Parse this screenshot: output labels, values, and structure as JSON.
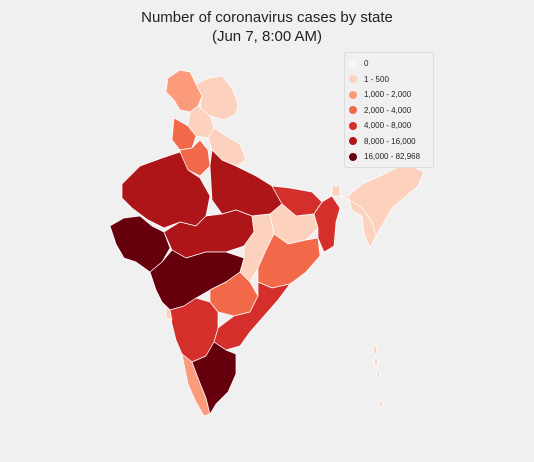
{
  "title": {
    "line1": "Number of coronavirus cases by state",
    "line2": "(Jun 7, 8:00 AM)"
  },
  "legend": {
    "bins": [
      {
        "label": "0",
        "color": "#fff5f0"
      },
      {
        "label": "1 - 500",
        "color": "#fcd2bf"
      },
      {
        "label": "1,000 - 2,000",
        "color": "#fc9a7c"
      },
      {
        "label": "2,000 - 4,000",
        "color": "#f2694a"
      },
      {
        "label": "4,000 - 8,000",
        "color": "#d42f2a"
      },
      {
        "label": "8,000 - 16,000",
        "color": "#ad1519"
      },
      {
        "label": "16,000 - 82,968",
        "color": "#67000d"
      }
    ]
  },
  "regions": [
    {
      "name": "jammu-kashmir",
      "bin": 2
    },
    {
      "name": "ladakh",
      "bin": 1
    },
    {
      "name": "himachal-pradesh",
      "bin": 1
    },
    {
      "name": "punjab",
      "bin": 3
    },
    {
      "name": "uttarakhand",
      "bin": 1
    },
    {
      "name": "haryana",
      "bin": 3
    },
    {
      "name": "rajasthan",
      "bin": 5
    },
    {
      "name": "uttar-pradesh",
      "bin": 5
    },
    {
      "name": "gujarat",
      "bin": 6
    },
    {
      "name": "madhya-pradesh",
      "bin": 5
    },
    {
      "name": "bihar",
      "bin": 4
    },
    {
      "name": "jharkhand",
      "bin": 1
    },
    {
      "name": "west-bengal",
      "bin": 4
    },
    {
      "name": "chhattisgarh",
      "bin": 1
    },
    {
      "name": "odisha",
      "bin": 3
    },
    {
      "name": "maharashtra",
      "bin": 6
    },
    {
      "name": "telangana",
      "bin": 3
    },
    {
      "name": "andhra-pradesh",
      "bin": 4
    },
    {
      "name": "karnataka",
      "bin": 4
    },
    {
      "name": "goa",
      "bin": 1
    },
    {
      "name": "kerala",
      "bin": 2
    },
    {
      "name": "tamil-nadu",
      "bin": 6
    },
    {
      "name": "northeast",
      "bin": 1
    },
    {
      "name": "assam",
      "bin": 1
    },
    {
      "name": "sikkim",
      "bin": 1
    },
    {
      "name": "andaman-nicobar",
      "bin": 1
    }
  ]
}
